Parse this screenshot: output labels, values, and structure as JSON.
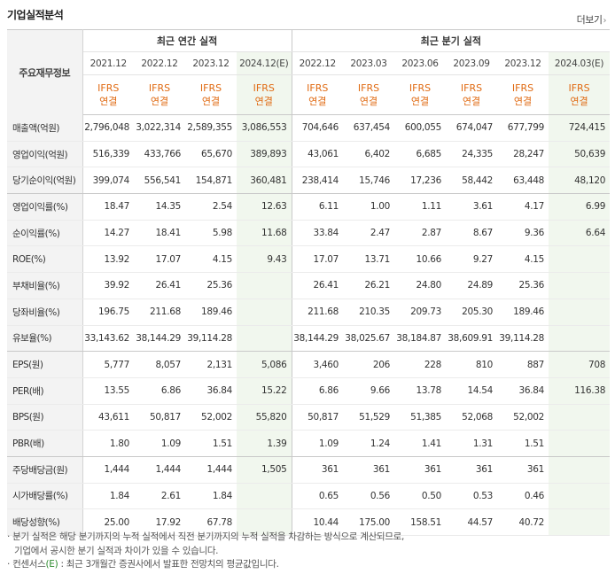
{
  "title": "기업실적분석",
  "more_label": "더보기",
  "header": {
    "label": "주요재무정보",
    "annual_title": "최근 연간 실적",
    "quarter_title": "최근 분기 실적",
    "columns": [
      "2021.12",
      "2022.12",
      "2023.12",
      "2024.12(E)",
      "2022.12",
      "2023.03",
      "2023.06",
      "2023.09",
      "2023.12",
      "2024.03(E)"
    ],
    "std_top": "IFRS",
    "std_bottom": "연결"
  },
  "rows": [
    {
      "label": "매출액(억원)",
      "values": [
        "2,796,048",
        "3,022,314",
        "2,589,355",
        "3,086,553",
        "704,646",
        "637,454",
        "600,055",
        "674,047",
        "677,799",
        "724,415"
      ]
    },
    {
      "label": "영업이익(억원)",
      "values": [
        "516,339",
        "433,766",
        "65,670",
        "389,893",
        "43,061",
        "6,402",
        "6,685",
        "24,335",
        "28,247",
        "50,639"
      ]
    },
    {
      "label": "당기순이익(억원)",
      "values": [
        "399,074",
        "556,541",
        "154,871",
        "360,481",
        "238,414",
        "15,746",
        "17,236",
        "58,442",
        "63,448",
        "48,120"
      ]
    },
    {
      "label": "영업이익률(%)",
      "values": [
        "18.47",
        "14.35",
        "2.54",
        "12.63",
        "6.11",
        "1.00",
        "1.11",
        "3.61",
        "4.17",
        "6.99"
      ]
    },
    {
      "label": "순이익률(%)",
      "values": [
        "14.27",
        "18.41",
        "5.98",
        "11.68",
        "33.84",
        "2.47",
        "2.87",
        "8.67",
        "9.36",
        "6.64"
      ]
    },
    {
      "label": "ROE(%)",
      "values": [
        "13.92",
        "17.07",
        "4.15",
        "9.43",
        "17.07",
        "13.71",
        "10.66",
        "9.27",
        "4.15",
        ""
      ]
    },
    {
      "label": "부채비율(%)",
      "values": [
        "39.92",
        "26.41",
        "25.36",
        "",
        "26.41",
        "26.21",
        "24.80",
        "24.89",
        "25.36",
        ""
      ]
    },
    {
      "label": "당좌비율(%)",
      "values": [
        "196.75",
        "211.68",
        "189.46",
        "",
        "211.68",
        "210.35",
        "209.73",
        "205.30",
        "189.46",
        ""
      ]
    },
    {
      "label": "유보율(%)",
      "values": [
        "33,143.62",
        "38,144.29",
        "39,114.28",
        "",
        "38,144.29",
        "38,025.67",
        "38,184.87",
        "38,609.91",
        "39,114.28",
        ""
      ]
    },
    {
      "label": "EPS(원)",
      "values": [
        "5,777",
        "8,057",
        "2,131",
        "5,086",
        "3,460",
        "206",
        "228",
        "810",
        "887",
        "708"
      ]
    },
    {
      "label": "PER(배)",
      "values": [
        "13.55",
        "6.86",
        "36.84",
        "15.22",
        "6.86",
        "9.66",
        "13.78",
        "14.54",
        "36.84",
        "116.38"
      ]
    },
    {
      "label": "BPS(원)",
      "values": [
        "43,611",
        "50,817",
        "52,002",
        "55,820",
        "50,817",
        "51,529",
        "51,385",
        "52,068",
        "52,002",
        ""
      ]
    },
    {
      "label": "PBR(배)",
      "values": [
        "1.80",
        "1.09",
        "1.51",
        "1.39",
        "1.09",
        "1.24",
        "1.41",
        "1.31",
        "1.51",
        ""
      ]
    },
    {
      "label": "주당배당금(원)",
      "values": [
        "1,444",
        "1,444",
        "1,444",
        "1,505",
        "361",
        "361",
        "361",
        "361",
        "361",
        ""
      ]
    },
    {
      "label": "시가배당률(%)",
      "values": [
        "1.84",
        "2.61",
        "1.84",
        "",
        "0.65",
        "0.56",
        "0.50",
        "0.53",
        "0.46",
        ""
      ]
    },
    {
      "label": "배당성향(%)",
      "values": [
        "25.00",
        "17.92",
        "67.78",
        "",
        "10.44",
        "175.00",
        "158.51",
        "44.57",
        "40.72",
        ""
      ]
    }
  ],
  "notes": {
    "line1": "· 분기 실적은 해당 분기까지의 누적 실적에서 직전 분기까지의 누적 실적을 차감하는 방식으로 계산되므로,",
    "line2": "기업에서 공시한 분기 실적과 차이가 있을 수 있습니다.",
    "line3_prefix": "· 컨센서스",
    "line3_mark": "(E)",
    "line3_suffix": " : 최근 3개월간 증권사에서 발표한 전망치의 평균값입니다."
  }
}
